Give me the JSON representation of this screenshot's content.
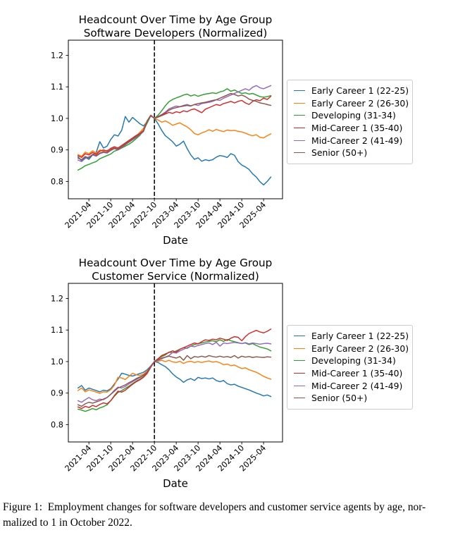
{
  "figure": {
    "caption_line1": "Figure 1: Employment changes for software developers and customer service agents by age, nor-",
    "caption_line2": "malized to 1 in October 2022."
  },
  "colors": {
    "early_career_1": "#1f77b4",
    "early_career_2": "#ff7f0e",
    "developing": "#2ca02c",
    "mid_career_1": "#d62728",
    "mid_career_2": "#9467bd",
    "senior": "#8c564b",
    "vline": "#000000",
    "legend_border": "#cccccc"
  },
  "chart_data": [
    {
      "type": "line",
      "title_line1": "Headcount Over Time by Age Group",
      "title_line2": "Software Developers (Normalized)",
      "xlabel": "Date",
      "x_start": "2021-01",
      "x_step": "1 month",
      "x_tick_months": [
        3,
        9,
        15,
        21,
        27,
        33,
        39,
        45,
        51
      ],
      "x_tick_labels": [
        "2021-04",
        "2021-10",
        "2022-04",
        "2022-10",
        "2023-04",
        "2023-10",
        "2024-04",
        "2024-10",
        "2025-04"
      ],
      "y_ticks": [
        0.8,
        0.9,
        1.0,
        1.1,
        1.2
      ],
      "y_tick_labels": [
        "0.8",
        "0.9",
        "1.0",
        "1.1",
        "1.2"
      ],
      "xlim": [
        -2.65,
        56.2
      ],
      "ylim": [
        0.745,
        1.248
      ],
      "grid": false,
      "legend_position": "center right, outside axes",
      "vline_month": 21,
      "vline_date": "2022-10",
      "series": [
        {
          "name": "Early Career 1 (22-25)",
          "color": "#1f77b4",
          "values": [
            0.878,
            0.866,
            0.876,
            0.87,
            0.884,
            0.892,
            0.926,
            0.906,
            0.912,
            0.933,
            0.948,
            0.944,
            0.962,
            1.006,
            0.988,
            1.003,
            0.993,
            0.983,
            0.976,
            0.989,
            1.008,
            1.0,
            0.983,
            0.962,
            0.945,
            0.936,
            0.926,
            0.912,
            0.918,
            0.928,
            0.904,
            0.884,
            0.87,
            0.875,
            0.864,
            0.869,
            0.866,
            0.869,
            0.877,
            0.882,
            0.88,
            0.876,
            0.888,
            0.883,
            0.863,
            0.852,
            0.846,
            0.838,
            0.824,
            0.814,
            0.799,
            0.789,
            0.8,
            0.814
          ]
        },
        {
          "name": "Early Career 2 (26-30)",
          "color": "#ff7f0e",
          "values": [
            0.885,
            0.88,
            0.893,
            0.888,
            0.897,
            0.89,
            0.9,
            0.896,
            0.898,
            0.903,
            0.906,
            0.903,
            0.91,
            0.92,
            0.928,
            0.935,
            0.944,
            0.956,
            0.968,
            0.992,
            1.01,
            1.0,
            0.995,
            0.988,
            0.992,
            0.986,
            0.978,
            0.982,
            0.986,
            0.979,
            0.973,
            0.964,
            0.952,
            0.948,
            0.954,
            0.958,
            0.964,
            0.959,
            0.965,
            0.961,
            0.958,
            0.963,
            0.961,
            0.962,
            0.959,
            0.957,
            0.953,
            0.948,
            0.945,
            0.948,
            0.94,
            0.938,
            0.945,
            0.951
          ]
        },
        {
          "name": "Developing (31-34)",
          "color": "#2ca02c",
          "values": [
            0.836,
            0.842,
            0.85,
            0.854,
            0.859,
            0.863,
            0.872,
            0.877,
            0.882,
            0.887,
            0.896,
            0.9,
            0.906,
            0.912,
            0.918,
            0.926,
            0.936,
            0.946,
            0.962,
            0.985,
            1.008,
            1.0,
            1.01,
            1.024,
            1.04,
            1.053,
            1.06,
            1.065,
            1.069,
            1.074,
            1.077,
            1.071,
            1.075,
            1.07,
            1.074,
            1.077,
            1.079,
            1.081,
            1.079,
            1.084,
            1.087,
            1.094,
            1.086,
            1.09,
            1.084,
            1.079,
            1.081,
            1.077,
            1.079,
            1.074,
            1.069,
            1.067,
            1.069,
            1.072
          ]
        },
        {
          "name": "Mid-Career 1 (35-40)",
          "color": "#d62728",
          "values": [
            0.882,
            0.876,
            0.888,
            0.884,
            0.892,
            0.886,
            0.896,
            0.9,
            0.896,
            0.905,
            0.91,
            0.906,
            0.914,
            0.922,
            0.93,
            0.938,
            0.946,
            0.952,
            0.962,
            0.992,
            1.01,
            1.0,
            1.004,
            1.009,
            1.014,
            1.019,
            1.016,
            1.021,
            1.018,
            1.024,
            1.021,
            1.027,
            1.03,
            1.024,
            1.018,
            1.029,
            1.034,
            1.039,
            1.044,
            1.041,
            1.047,
            1.05,
            1.054,
            1.049,
            1.054,
            1.057,
            1.049,
            1.044,
            1.054,
            1.059,
            1.056,
            1.064,
            1.06,
            1.07
          ]
        },
        {
          "name": "Mid-Career 2 (41-49)",
          "color": "#9467bd",
          "values": [
            0.868,
            0.863,
            0.873,
            0.878,
            0.884,
            0.88,
            0.888,
            0.892,
            0.89,
            0.898,
            0.904,
            0.9,
            0.908,
            0.916,
            0.924,
            0.932,
            0.94,
            0.948,
            0.958,
            0.99,
            1.008,
            1.0,
            1.006,
            1.012,
            1.02,
            1.03,
            1.035,
            1.039,
            1.037,
            1.041,
            1.044,
            1.04,
            1.044,
            1.041,
            1.047,
            1.049,
            1.051,
            1.054,
            1.059,
            1.057,
            1.064,
            1.069,
            1.074,
            1.079,
            1.084,
            1.089,
            1.094,
            1.089,
            1.099,
            1.104,
            1.097,
            1.094,
            1.099,
            1.104
          ]
        },
        {
          "name": "Senior (50+)",
          "color": "#8c564b",
          "values": [
            0.874,
            0.869,
            0.879,
            0.874,
            0.886,
            0.882,
            0.89,
            0.894,
            0.892,
            0.9,
            0.906,
            0.902,
            0.91,
            0.918,
            0.926,
            0.934,
            0.942,
            0.95,
            0.96,
            0.991,
            1.009,
            1.0,
            1.005,
            1.011,
            1.017,
            1.026,
            1.031,
            1.034,
            1.037,
            1.039,
            1.041,
            1.039,
            1.044,
            1.047,
            1.049,
            1.051,
            1.054,
            1.057,
            1.059,
            1.064,
            1.069,
            1.074,
            1.079,
            1.076,
            1.071,
            1.074,
            1.069,
            1.061,
            1.057,
            1.054,
            1.049,
            1.047,
            1.044,
            1.041
          ]
        }
      ]
    },
    {
      "type": "line",
      "title_line1": "Headcount Over Time by Age Group",
      "title_line2": "Customer Service (Normalized)",
      "xlabel": "Date",
      "x_start": "2021-01",
      "x_step": "1 month",
      "x_tick_months": [
        3,
        9,
        15,
        21,
        27,
        33,
        39,
        45,
        51
      ],
      "x_tick_labels": [
        "2021-04",
        "2021-10",
        "2022-04",
        "2022-10",
        "2023-04",
        "2023-10",
        "2024-04",
        "2024-10",
        "2025-04"
      ],
      "y_ticks": [
        0.8,
        0.9,
        1.0,
        1.1,
        1.2
      ],
      "y_tick_labels": [
        "0.8",
        "0.9",
        "1.0",
        "1.1",
        "1.2"
      ],
      "xlim": [
        -2.65,
        56.2
      ],
      "ylim": [
        0.745,
        1.248
      ],
      "grid": false,
      "legend_position": "center right, outside axes",
      "vline_month": 21,
      "vline_date": "2022-10",
      "series": [
        {
          "name": "Early Career 1 (22-25)",
          "color": "#1f77b4",
          "values": [
            0.916,
            0.924,
            0.909,
            0.916,
            0.912,
            0.908,
            0.904,
            0.909,
            0.907,
            0.914,
            0.929,
            0.944,
            0.963,
            0.96,
            0.956,
            0.954,
            0.958,
            0.962,
            0.966,
            0.974,
            0.986,
            1.0,
            0.997,
            0.99,
            0.984,
            0.974,
            0.961,
            0.951,
            0.944,
            0.934,
            0.942,
            0.946,
            0.94,
            0.95,
            0.946,
            0.948,
            0.945,
            0.948,
            0.94,
            0.936,
            0.94,
            0.93,
            0.926,
            0.928,
            0.922,
            0.918,
            0.914,
            0.91,
            0.905,
            0.9,
            0.896,
            0.891,
            0.894,
            0.889
          ]
        },
        {
          "name": "Early Career 2 (26-30)",
          "color": "#ff7f0e",
          "values": [
            0.908,
            0.916,
            0.904,
            0.91,
            0.907,
            0.903,
            0.899,
            0.904,
            0.903,
            0.911,
            0.925,
            0.95,
            0.948,
            0.943,
            0.953,
            0.963,
            0.958,
            0.956,
            0.96,
            0.97,
            0.984,
            1.0,
            1.001,
            1.004,
            1.0,
            1.004,
            0.999,
            0.997,
            1.001,
            0.994,
            0.999,
            1.001,
            0.997,
            1.0,
            0.997,
            1.0,
            1.002,
            0.998,
            1.0,
            0.996,
            0.99,
            0.992,
            0.987,
            0.989,
            0.983,
            0.978,
            0.98,
            0.974,
            0.97,
            0.966,
            0.96,
            0.953,
            0.948,
            0.944
          ]
        },
        {
          "name": "Developing (31-34)",
          "color": "#2ca02c",
          "values": [
            0.849,
            0.846,
            0.842,
            0.846,
            0.851,
            0.847,
            0.853,
            0.857,
            0.863,
            0.876,
            0.89,
            0.902,
            0.908,
            0.915,
            0.922,
            0.93,
            0.938,
            0.944,
            0.952,
            0.966,
            0.984,
            1.0,
            1.009,
            1.016,
            1.021,
            1.03,
            1.028,
            1.034,
            1.039,
            1.044,
            1.042,
            1.049,
            1.054,
            1.057,
            1.059,
            1.062,
            1.064,
            1.066,
            1.063,
            1.069,
            1.064,
            1.07,
            1.066,
            1.063,
            1.06,
            1.057,
            1.059,
            1.054,
            1.057,
            1.051,
            1.046,
            1.043,
            1.04,
            1.034
          ]
        },
        {
          "name": "Mid-Career 1 (35-40)",
          "color": "#d62728",
          "values": [
            0.856,
            0.851,
            0.858,
            0.854,
            0.861,
            0.857,
            0.864,
            0.869,
            0.866,
            0.876,
            0.892,
            0.906,
            0.903,
            0.909,
            0.919,
            0.928,
            0.936,
            0.942,
            0.95,
            0.962,
            0.982,
            1.0,
            1.009,
            1.019,
            1.024,
            1.029,
            1.034,
            1.03,
            1.039,
            1.044,
            1.049,
            1.054,
            1.059,
            1.056,
            1.063,
            1.069,
            1.067,
            1.071,
            1.069,
            1.074,
            1.071,
            1.067,
            1.074,
            1.079,
            1.077,
            1.066,
            1.079,
            1.089,
            1.094,
            1.099,
            1.094,
            1.091,
            1.096,
            1.103
          ]
        },
        {
          "name": "Mid-Career 2 (41-49)",
          "color": "#9467bd",
          "values": [
            0.876,
            0.871,
            0.879,
            0.886,
            0.879,
            0.876,
            0.881,
            0.879,
            0.886,
            0.896,
            0.909,
            0.919,
            0.916,
            0.921,
            0.929,
            0.936,
            0.943,
            0.949,
            0.956,
            0.966,
            0.986,
            1.0,
            1.004,
            1.009,
            1.014,
            1.019,
            1.029,
            1.027,
            1.034,
            1.039,
            1.044,
            1.049,
            1.047,
            1.051,
            1.054,
            1.057,
            1.059,
            1.054,
            1.061,
            1.049,
            1.059,
            1.057,
            1.059,
            1.061,
            1.059,
            1.057,
            1.06,
            1.056,
            1.059,
            1.057,
            1.055,
            1.057,
            1.058,
            1.056
          ]
        },
        {
          "name": "Senior (50+)",
          "color": "#8c564b",
          "values": [
            0.863,
            0.858,
            0.866,
            0.871,
            0.868,
            0.872,
            0.876,
            0.881,
            0.886,
            0.896,
            0.906,
            0.916,
            0.921,
            0.926,
            0.933,
            0.939,
            0.946,
            0.951,
            0.957,
            0.966,
            0.985,
            1.0,
            1.006,
            1.011,
            1.014,
            1.017,
            1.014,
            1.011,
            1.016,
            1.004,
            1.019,
            1.009,
            1.016,
            1.014,
            1.017,
            1.014,
            1.019,
            1.016,
            1.014,
            1.017,
            1.014,
            1.016,
            1.013,
            1.019,
            1.011,
            1.017,
            1.014,
            1.016,
            1.013,
            1.015,
            1.014,
            1.013,
            1.015,
            1.014
          ]
        }
      ]
    }
  ]
}
